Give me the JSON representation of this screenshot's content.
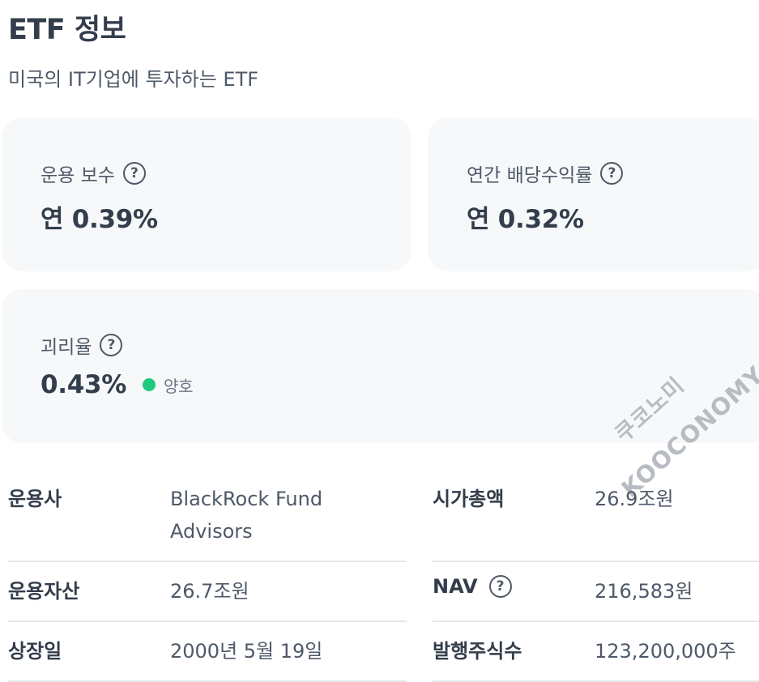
{
  "header": {
    "title": "ETF 정보",
    "subtitle": "미국의 IT기업에 투자하는 ETF"
  },
  "cards": {
    "fee": {
      "label": "운용 보수",
      "value": "연 0.39%"
    },
    "dividend": {
      "label": "연간 배당수익률",
      "value": "연 0.32%"
    },
    "divergence": {
      "label": "괴리율",
      "value": "0.43%",
      "status": "양호",
      "status_color": "#1ec97e"
    }
  },
  "help_icon": "?",
  "watermark": {
    "line1": "쿠코노미",
    "line2": "KOOCONOMY"
  },
  "info": {
    "manager": {
      "label": "운용사",
      "value": "BlackRock Fund Advisors"
    },
    "market_cap": {
      "label": "시가총액",
      "value": "26.9조원"
    },
    "aum": {
      "label": "운용자산",
      "value": "26.7조원"
    },
    "nav": {
      "label": "NAV",
      "value": "216,583원"
    },
    "listing_date": {
      "label": "상장일",
      "value": "2000년 5월 19일"
    },
    "shares": {
      "label": "발행주식수",
      "value": "123,200,000주"
    }
  }
}
